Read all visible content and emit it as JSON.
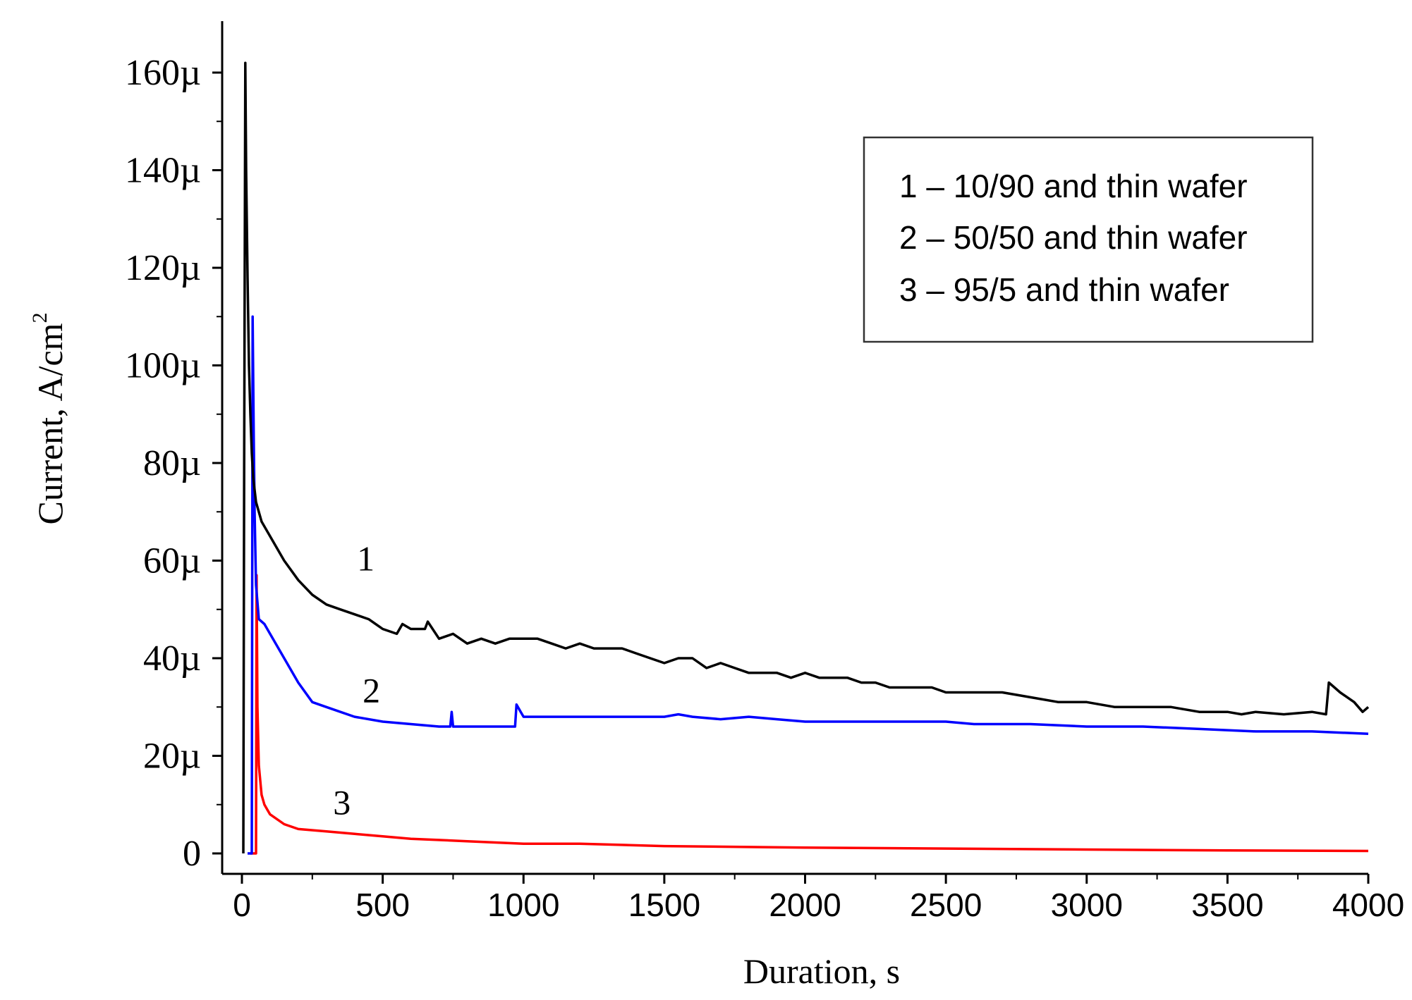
{
  "chart_data": {
    "type": "line",
    "title": "",
    "xlabel": "Duration, s",
    "ylabel_main": "Current, A/cm",
    "ylabel_sup": "2",
    "xlim": [
      -60,
      4000
    ],
    "ylim": [
      -2,
      170
    ],
    "x_ticks": [
      0,
      500,
      1000,
      1500,
      2000,
      2500,
      3000,
      3500,
      4000
    ],
    "x_tick_labels": [
      "0",
      "500",
      "1000",
      "1500",
      "2000",
      "2500",
      "3000",
      "3500",
      "4000"
    ],
    "y_ticks": [
      0,
      20,
      40,
      60,
      80,
      100,
      120,
      140,
      160
    ],
    "y_tick_labels": [
      "0",
      "20µ",
      "40µ",
      "60µ",
      "80µ",
      "100µ",
      "120µ",
      "140µ",
      "160µ"
    ],
    "y_unit_note": "values in µA/cm²",
    "grid": false,
    "legend": {
      "placement": "top-right",
      "entries": [
        "1 – 10/90 and thin wafer",
        "2 – 50/50 and thin wafer",
        "3 – 95/5 and thin wafer"
      ]
    },
    "series": [
      {
        "name": "1 – 10/90 and thin wafer",
        "label": "1",
        "label_at": [
          440,
          58
        ],
        "color": "#000000",
        "points": [
          [
            5,
            0
          ],
          [
            8,
            80
          ],
          [
            12,
            162
          ],
          [
            15,
            140
          ],
          [
            20,
            118
          ],
          [
            25,
            100
          ],
          [
            30,
            90
          ],
          [
            35,
            82
          ],
          [
            40,
            77
          ],
          [
            50,
            72
          ],
          [
            70,
            68
          ],
          [
            100,
            65
          ],
          [
            150,
            60
          ],
          [
            200,
            56
          ],
          [
            250,
            53
          ],
          [
            300,
            51
          ],
          [
            350,
            50
          ],
          [
            400,
            49
          ],
          [
            450,
            48
          ],
          [
            500,
            46
          ],
          [
            550,
            45
          ],
          [
            570,
            47
          ],
          [
            600,
            46
          ],
          [
            650,
            46
          ],
          [
            660,
            47.5
          ],
          [
            700,
            44
          ],
          [
            750,
            45
          ],
          [
            800,
            43
          ],
          [
            850,
            44
          ],
          [
            900,
            43
          ],
          [
            950,
            44
          ],
          [
            1000,
            44
          ],
          [
            1050,
            44
          ],
          [
            1100,
            43
          ],
          [
            1150,
            42
          ],
          [
            1200,
            43
          ],
          [
            1250,
            42
          ],
          [
            1300,
            42
          ],
          [
            1350,
            42
          ],
          [
            1400,
            41
          ],
          [
            1450,
            40
          ],
          [
            1500,
            39
          ],
          [
            1550,
            40
          ],
          [
            1600,
            40
          ],
          [
            1650,
            38
          ],
          [
            1700,
            39
          ],
          [
            1750,
            38
          ],
          [
            1800,
            37
          ],
          [
            1850,
            37
          ],
          [
            1900,
            37
          ],
          [
            1950,
            36
          ],
          [
            2000,
            37
          ],
          [
            2050,
            36
          ],
          [
            2100,
            36
          ],
          [
            2150,
            36
          ],
          [
            2200,
            35
          ],
          [
            2250,
            35
          ],
          [
            2300,
            34
          ],
          [
            2350,
            34
          ],
          [
            2400,
            34
          ],
          [
            2450,
            34
          ],
          [
            2500,
            33
          ],
          [
            2600,
            33
          ],
          [
            2700,
            33
          ],
          [
            2800,
            32
          ],
          [
            2900,
            31
          ],
          [
            3000,
            31
          ],
          [
            3100,
            30
          ],
          [
            3200,
            30
          ],
          [
            3300,
            30
          ],
          [
            3400,
            29
          ],
          [
            3500,
            29
          ],
          [
            3550,
            28.5
          ],
          [
            3600,
            29
          ],
          [
            3700,
            28.5
          ],
          [
            3800,
            29
          ],
          [
            3850,
            28.5
          ],
          [
            3860,
            35
          ],
          [
            3900,
            33
          ],
          [
            3950,
            31
          ],
          [
            3980,
            29
          ],
          [
            4000,
            30
          ]
        ]
      },
      {
        "name": "2 – 50/50 and thin wafer",
        "label": "2",
        "label_at": [
          460,
          31
        ],
        "color": "#0000ff",
        "points": [
          [
            20,
            0
          ],
          [
            35,
            0
          ],
          [
            38,
            110
          ],
          [
            42,
            85
          ],
          [
            45,
            70
          ],
          [
            50,
            55
          ],
          [
            60,
            48
          ],
          [
            80,
            47
          ],
          [
            100,
            45
          ],
          [
            150,
            40
          ],
          [
            200,
            35
          ],
          [
            250,
            31
          ],
          [
            300,
            30
          ],
          [
            400,
            28
          ],
          [
            500,
            27
          ],
          [
            600,
            26.5
          ],
          [
            700,
            26
          ],
          [
            740,
            26
          ],
          [
            745,
            29
          ],
          [
            750,
            26
          ],
          [
            800,
            26
          ],
          [
            900,
            26
          ],
          [
            970,
            26
          ],
          [
            975,
            30.5
          ],
          [
            990,
            29
          ],
          [
            1000,
            28
          ],
          [
            1100,
            28
          ],
          [
            1200,
            28
          ],
          [
            1300,
            28
          ],
          [
            1400,
            28
          ],
          [
            1500,
            28
          ],
          [
            1550,
            28.5
          ],
          [
            1600,
            28
          ],
          [
            1700,
            27.5
          ],
          [
            1800,
            28
          ],
          [
            1900,
            27.5
          ],
          [
            2000,
            27
          ],
          [
            2200,
            27
          ],
          [
            2400,
            27
          ],
          [
            2500,
            27
          ],
          [
            2600,
            26.5
          ],
          [
            2800,
            26.5
          ],
          [
            3000,
            26
          ],
          [
            3200,
            26
          ],
          [
            3400,
            25.5
          ],
          [
            3600,
            25
          ],
          [
            3800,
            25
          ],
          [
            4000,
            24.5
          ]
        ]
      },
      {
        "name": "3 – 95/5 and thin wafer",
        "label": "3",
        "label_at": [
          355,
          8
        ],
        "color": "#ff0000",
        "points": [
          [
            30,
            0
          ],
          [
            50,
            0
          ],
          [
            52,
            57
          ],
          [
            55,
            30
          ],
          [
            60,
            18
          ],
          [
            70,
            12
          ],
          [
            80,
            10
          ],
          [
            90,
            9
          ],
          [
            100,
            8
          ],
          [
            150,
            6
          ],
          [
            200,
            5
          ],
          [
            300,
            4.5
          ],
          [
            400,
            4
          ],
          [
            500,
            3.5
          ],
          [
            600,
            3
          ],
          [
            800,
            2.5
          ],
          [
            1000,
            2
          ],
          [
            1200,
            2
          ],
          [
            1500,
            1.5
          ],
          [
            2000,
            1.2
          ],
          [
            2500,
            1
          ],
          [
            3000,
            0.8
          ],
          [
            3500,
            0.6
          ],
          [
            4000,
            0.5
          ]
        ]
      }
    ]
  }
}
